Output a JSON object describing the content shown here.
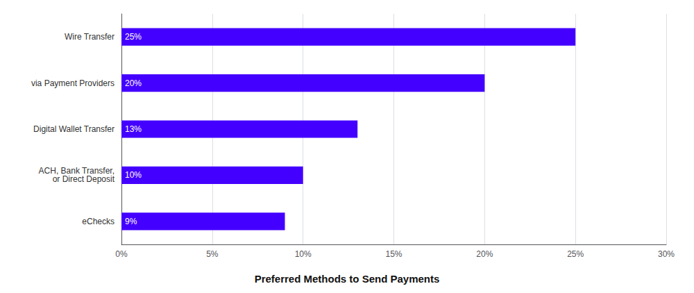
{
  "chart_data": {
    "type": "bar",
    "orientation": "horizontal",
    "title": "Preferred Methods to Send Payments",
    "categories": [
      "eChecks",
      "ACH, Bank Transfer,\nor Direct Deposit",
      "Digital Wallet Transfer",
      "via Payment Providers",
      "Wire Transfer"
    ],
    "values": [
      9,
      10,
      13,
      20,
      25
    ],
    "value_labels": [
      "9%",
      "10%",
      "13%",
      "20%",
      "25%"
    ],
    "data_labels": true,
    "color": "#4400ff",
    "xlim": [
      0,
      30
    ],
    "xticks": [
      {
        "value": 0,
        "label": "0%"
      },
      {
        "value": 5,
        "label": "5%"
      },
      {
        "value": 10,
        "label": "10%"
      },
      {
        "value": 15,
        "label": "15%"
      },
      {
        "value": 20,
        "label": "20%"
      },
      {
        "value": 25,
        "label": "25%"
      },
      {
        "value": 30,
        "label": "30%"
      }
    ],
    "grid": true
  }
}
